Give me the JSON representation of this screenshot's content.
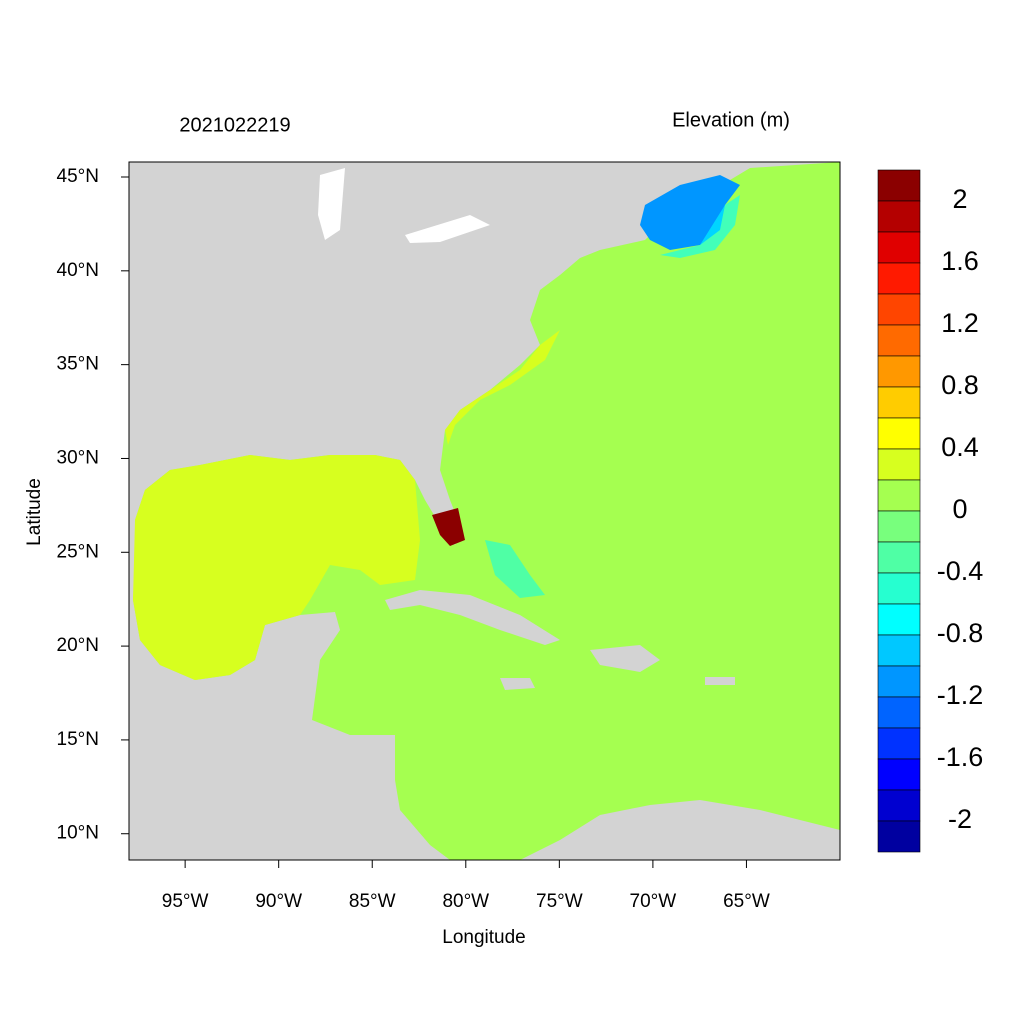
{
  "chart_data": {
    "type": "map",
    "title": "2021022219",
    "subtitle": "Elevation (m)",
    "x_label": "Longitude",
    "y_label": "Latitude",
    "xlim": [
      -98,
      -60
    ],
    "ylim": [
      8.6,
      45.8
    ],
    "xticks": [
      {
        "value": -95,
        "label": "95°W"
      },
      {
        "value": -90,
        "label": "90°W"
      },
      {
        "value": -85,
        "label": "85°W"
      },
      {
        "value": -80,
        "label": "80°W"
      },
      {
        "value": -75,
        "label": "75°W"
      },
      {
        "value": -70,
        "label": "70°W"
      },
      {
        "value": -65,
        "label": "65°W"
      }
    ],
    "yticks": [
      {
        "value": 10,
        "label": "10°N"
      },
      {
        "value": 15,
        "label": "15°N"
      },
      {
        "value": 20,
        "label": "20°N"
      },
      {
        "value": 25,
        "label": "25°N"
      },
      {
        "value": 30,
        "label": "30°N"
      },
      {
        "value": 35,
        "label": "35°N"
      },
      {
        "value": 40,
        "label": "40°N"
      },
      {
        "value": 45,
        "label": "45°N"
      }
    ],
    "colorbar": {
      "clim": [
        -2.2,
        2.2
      ],
      "colors": [
        "#8b0000",
        "#b40000",
        "#e00000",
        "#ff1a00",
        "#ff4500",
        "#ff6a00",
        "#ff9800",
        "#ffcc00",
        "#ffff00",
        "#d7ff1f",
        "#a5ff50",
        "#78ff7d",
        "#4fffa5",
        "#26ffd0",
        "#00ffff",
        "#00c8ff",
        "#0096ff",
        "#0064ff",
        "#0032ff",
        "#0000ff",
        "#0000d0",
        "#0000a0"
      ],
      "ticks": [
        2,
        1.6,
        1.2,
        0.8,
        0.4,
        0,
        -0.4,
        -0.8,
        -1.2,
        -1.6,
        -2
      ]
    }
  }
}
